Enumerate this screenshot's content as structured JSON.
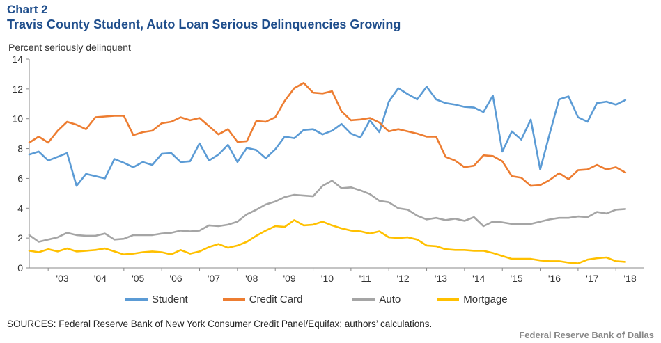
{
  "header": {
    "label": "Chart 2",
    "title": "Travis County Student, Auto Loan Serious Delinquencies Growing"
  },
  "footer": {
    "source": "SOURCES: Federal Reserve Bank of New York Consumer Credit Panel/Equifax; authors’ calculations.",
    "credit": "Federal Reserve Bank of Dallas"
  },
  "chart_data": {
    "type": "line",
    "title": "Travis County Student, Auto Loan Serious Delinquencies Growing",
    "ylabel": "Percent seriously delinquent",
    "xlabel": "",
    "ylim": [
      0,
      14
    ],
    "yticks": [
      "0",
      "2",
      "4",
      "6",
      "8",
      "10",
      "12",
      "14"
    ],
    "xlim": [
      2002.5,
      2018.75
    ],
    "xticks": [
      {
        "label": "'03",
        "x": 2003
      },
      {
        "label": "'04",
        "x": 2004
      },
      {
        "label": "'05",
        "x": 2005
      },
      {
        "label": "'06",
        "x": 2006
      },
      {
        "label": "'07",
        "x": 2007
      },
      {
        "label": "'08",
        "x": 2008
      },
      {
        "label": "'09",
        "x": 2009
      },
      {
        "label": "'10",
        "x": 2010
      },
      {
        "label": "'11",
        "x": 2011
      },
      {
        "label": "'12",
        "x": 2012
      },
      {
        "label": "'13",
        "x": 2013
      },
      {
        "label": "'14",
        "x": 2014
      },
      {
        "label": "'15",
        "x": 2015
      },
      {
        "label": "'16",
        "x": 2016
      },
      {
        "label": "'17",
        "x": 2017
      },
      {
        "label": "'18",
        "x": 2018
      }
    ],
    "x_start": 2002.5,
    "x_step": 0.25,
    "legend_position": "bottom",
    "series": [
      {
        "name": "Student",
        "color": "#5b9bd5",
        "values": [
          7.6,
          7.8,
          7.2,
          7.45,
          7.7,
          5.5,
          6.3,
          6.15,
          6.0,
          7.3,
          7.05,
          6.75,
          7.1,
          6.9,
          7.65,
          7.7,
          7.1,
          7.15,
          8.35,
          7.2,
          7.6,
          8.25,
          7.1,
          8.05,
          7.9,
          7.35,
          7.95,
          8.8,
          8.7,
          9.25,
          9.3,
          8.95,
          9.2,
          9.65,
          9.0,
          8.75,
          9.9,
          9.1,
          11.15,
          12.05,
          11.65,
          11.3,
          12.15,
          11.3,
          11.05,
          10.95,
          10.8,
          10.75,
          10.45,
          11.55,
          7.8,
          9.15,
          8.6,
          9.95,
          6.6,
          9.0,
          11.3,
          11.5,
          10.1,
          9.8,
          11.05,
          11.15,
          10.95,
          11.25
        ]
      },
      {
        "name": "Credit Card",
        "color": "#ed7d31",
        "values": [
          8.4,
          8.8,
          8.4,
          9.2,
          9.8,
          9.6,
          9.3,
          10.1,
          10.15,
          10.2,
          10.2,
          8.9,
          9.1,
          9.2,
          9.7,
          9.8,
          10.1,
          9.9,
          10.05,
          9.5,
          8.95,
          9.3,
          8.45,
          8.5,
          9.85,
          9.8,
          10.1,
          11.2,
          12.05,
          12.4,
          11.75,
          11.7,
          11.85,
          10.5,
          9.9,
          9.95,
          10.05,
          9.75,
          9.15,
          9.3,
          9.15,
          9.0,
          8.8,
          8.8,
          7.45,
          7.2,
          6.75,
          6.85,
          7.55,
          7.5,
          7.15,
          6.15,
          6.05,
          5.5,
          5.55,
          5.9,
          6.35,
          5.95,
          6.55,
          6.6,
          6.9,
          6.6,
          6.75,
          6.4
        ]
      },
      {
        "name": "Auto",
        "color": "#a5a5a5",
        "values": [
          2.2,
          1.75,
          1.9,
          2.05,
          2.35,
          2.2,
          2.15,
          2.15,
          2.3,
          1.9,
          1.95,
          2.2,
          2.2,
          2.2,
          2.3,
          2.35,
          2.5,
          2.45,
          2.5,
          2.85,
          2.8,
          2.9,
          3.1,
          3.6,
          3.9,
          4.25,
          4.45,
          4.75,
          4.9,
          4.85,
          4.8,
          5.5,
          5.85,
          5.35,
          5.4,
          5.2,
          4.95,
          4.5,
          4.4,
          4.0,
          3.9,
          3.5,
          3.25,
          3.35,
          3.2,
          3.3,
          3.15,
          3.4,
          2.8,
          3.1,
          3.05,
          2.95,
          2.95,
          2.95,
          3.1,
          3.25,
          3.35,
          3.35,
          3.45,
          3.4,
          3.75,
          3.65,
          3.9,
          3.95
        ]
      },
      {
        "name": "Mortgage",
        "color": "#ffc000",
        "values": [
          1.15,
          1.05,
          1.25,
          1.1,
          1.3,
          1.1,
          1.15,
          1.2,
          1.3,
          1.1,
          0.9,
          0.95,
          1.05,
          1.1,
          1.05,
          0.9,
          1.2,
          0.95,
          1.1,
          1.4,
          1.6,
          1.35,
          1.5,
          1.75,
          2.15,
          2.5,
          2.8,
          2.75,
          3.2,
          2.85,
          2.9,
          3.1,
          2.85,
          2.65,
          2.5,
          2.45,
          2.3,
          2.45,
          2.05,
          2.0,
          2.05,
          1.9,
          1.5,
          1.45,
          1.25,
          1.2,
          1.2,
          1.15,
          1.15,
          1.0,
          0.8,
          0.6,
          0.6,
          0.6,
          0.5,
          0.45,
          0.45,
          0.35,
          0.3,
          0.55,
          0.65,
          0.7,
          0.45,
          0.4
        ]
      }
    ]
  }
}
